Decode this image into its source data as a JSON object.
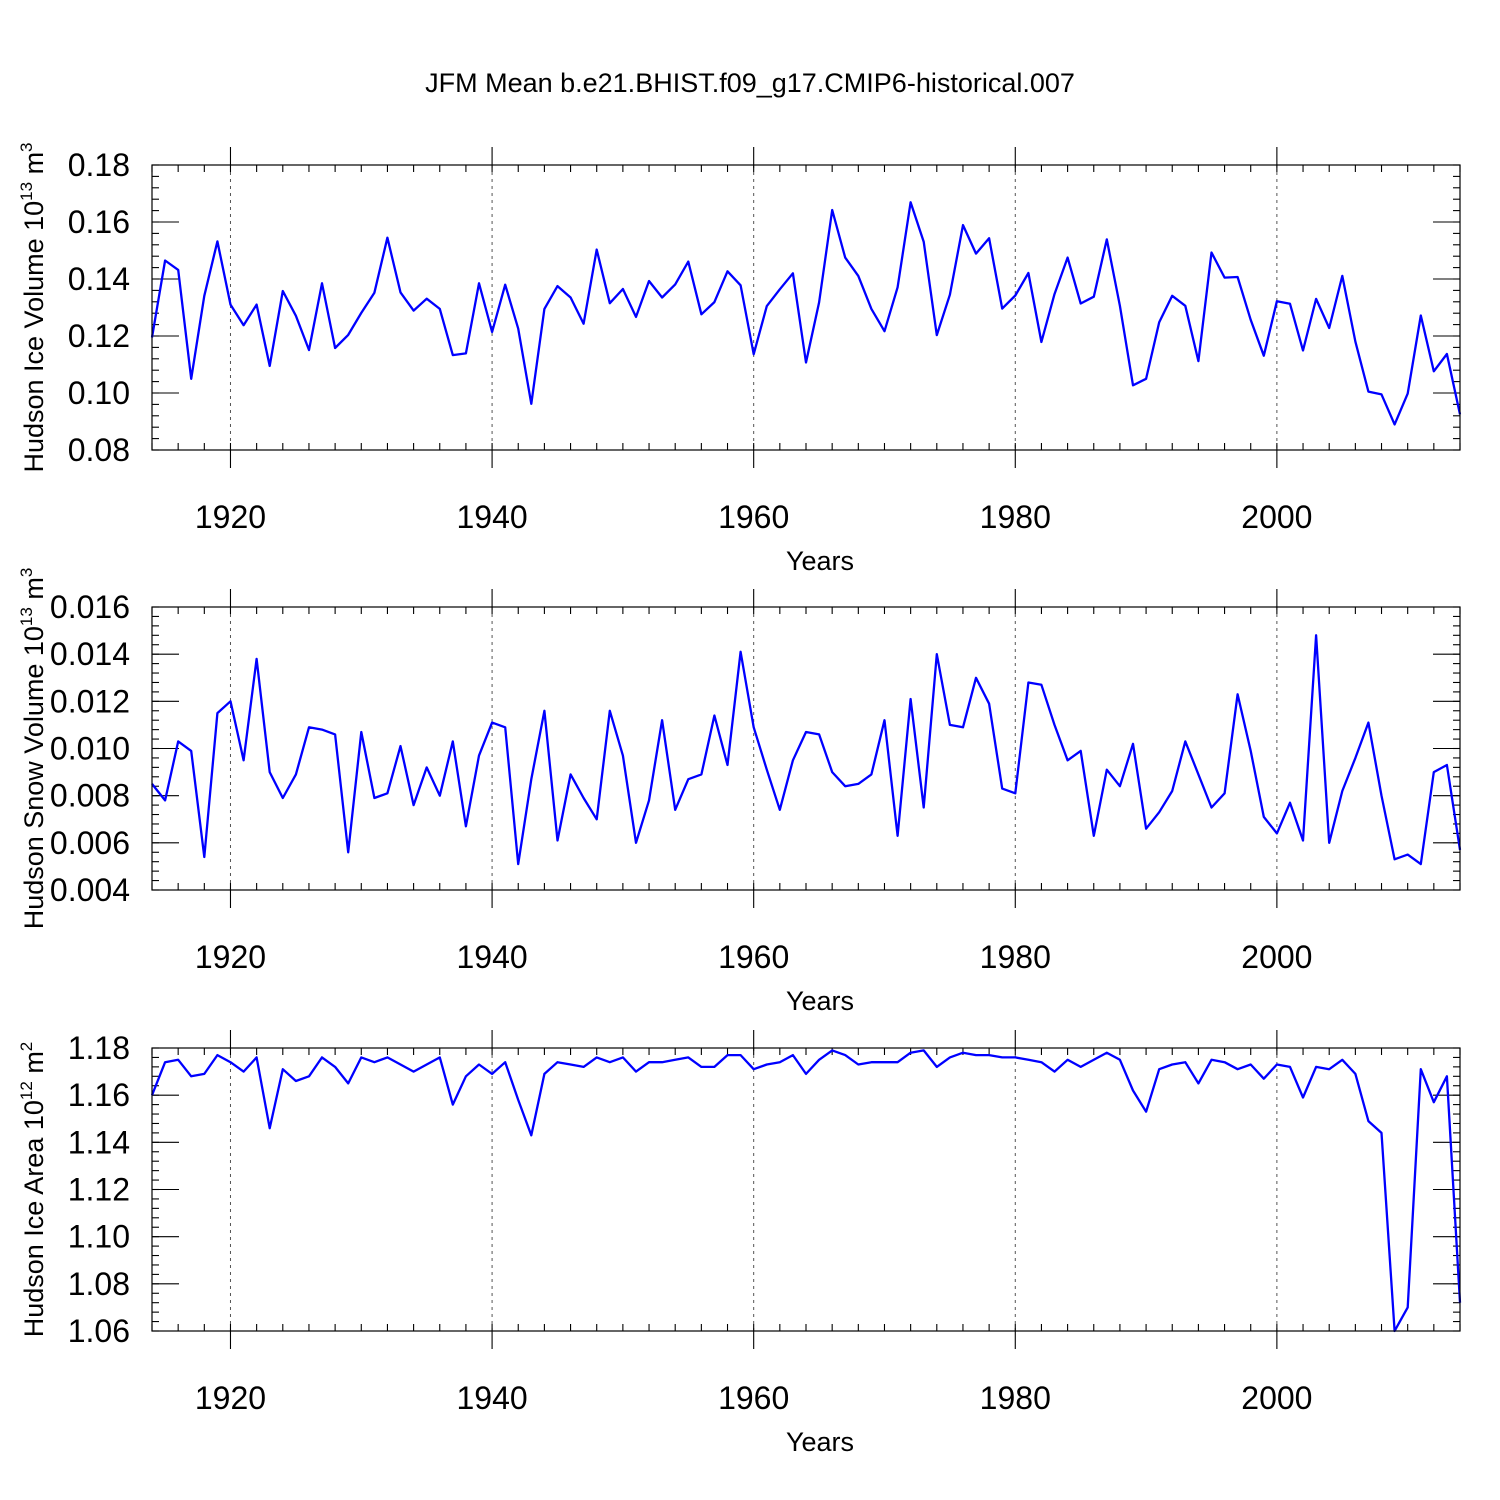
{
  "title": "JFM Mean b.e21.BHIST.f09_g17.CMIP6-historical.007",
  "colors": {
    "series": "#0000ff",
    "axis": "#000000",
    "grid": "#555555"
  },
  "chart_data": [
    {
      "type": "line",
      "ylabel": "Hudson Ice Volume",
      "yunit": {
        "base": "10",
        "exp": "13",
        "suffix": "m",
        "suffix_exp": "3"
      },
      "xlabel": "Years",
      "xlim": [
        1914,
        2014
      ],
      "ylim": [
        0.08,
        0.18
      ],
      "yticks": [
        0.08,
        0.1,
        0.12,
        0.14,
        0.16,
        0.18
      ],
      "ytick_labels": [
        "0.08",
        "0.10",
        "0.12",
        "0.14",
        "0.16",
        "0.18"
      ],
      "xticks": [
        1920,
        1940,
        1960,
        1980,
        2000
      ],
      "xtick_labels": [
        "1920",
        "1940",
        "1960",
        "1980",
        "2000"
      ],
      "grid": "dashed vertical at major x ticks",
      "x_start": 1914,
      "values": [
        0.1195,
        0.1465,
        0.1432,
        0.105,
        0.1341,
        0.1532,
        0.131,
        0.1238,
        0.131,
        0.1095,
        0.1358,
        0.1271,
        0.1151,
        0.1385,
        0.1158,
        0.1204,
        0.1281,
        0.1352,
        0.1545,
        0.1353,
        0.1289,
        0.1331,
        0.1295,
        0.1133,
        0.1139,
        0.1385,
        0.1214,
        0.138,
        0.1226,
        0.0962,
        0.1295,
        0.1375,
        0.1335,
        0.1243,
        0.1503,
        0.1315,
        0.1365,
        0.1267,
        0.1393,
        0.1335,
        0.1381,
        0.1461,
        0.1276,
        0.1319,
        0.1427,
        0.1378,
        0.1136,
        0.1305,
        0.1364,
        0.142,
        0.1107,
        0.1318,
        0.1642,
        0.1475,
        0.1411,
        0.1295,
        0.1217,
        0.1371,
        0.1669,
        0.1531,
        0.1203,
        0.1345,
        0.1589,
        0.1489,
        0.1543,
        0.1296,
        0.1342,
        0.1421,
        0.1179,
        0.1347,
        0.1475,
        0.1314,
        0.1338,
        0.1539,
        0.1306,
        0.1027,
        0.105,
        0.1248,
        0.1341,
        0.1306,
        0.1112,
        0.1493,
        0.1405,
        0.1407,
        0.1257,
        0.1131,
        0.1322,
        0.1313,
        0.1149,
        0.133,
        0.1228,
        0.1411,
        0.118,
        0.1005,
        0.0995,
        0.089,
        0.0998,
        0.1272,
        0.1076,
        0.1137,
        0.0925
      ]
    },
    {
      "type": "line",
      "ylabel": "Hudson Snow Volume",
      "yunit": {
        "base": "10",
        "exp": "13",
        "suffix": "m",
        "suffix_exp": "3"
      },
      "xlabel": "Years",
      "xlim": [
        1914,
        2014
      ],
      "ylim": [
        0.004,
        0.016
      ],
      "yticks": [
        0.004,
        0.006,
        0.008,
        0.01,
        0.012,
        0.014,
        0.016
      ],
      "ytick_labels": [
        "0.004",
        "0.006",
        "0.008",
        "0.010",
        "0.012",
        "0.014",
        "0.016"
      ],
      "xticks": [
        1920,
        1940,
        1960,
        1980,
        2000
      ],
      "xtick_labels": [
        "1920",
        "1940",
        "1960",
        "1980",
        "2000"
      ],
      "grid": "dashed vertical at major x ticks",
      "x_start": 1914,
      "values": [
        0.0085,
        0.0078,
        0.0103,
        0.0099,
        0.0054,
        0.0115,
        0.012,
        0.0095,
        0.0138,
        0.009,
        0.0079,
        0.0089,
        0.0109,
        0.0108,
        0.0106,
        0.0056,
        0.0107,
        0.0079,
        0.0081,
        0.0101,
        0.0076,
        0.0092,
        0.008,
        0.0103,
        0.0067,
        0.0097,
        0.0111,
        0.0109,
        0.0051,
        0.0087,
        0.0116,
        0.0061,
        0.0089,
        0.0079,
        0.007,
        0.0116,
        0.0097,
        0.006,
        0.0078,
        0.0112,
        0.0074,
        0.0087,
        0.0089,
        0.0114,
        0.0093,
        0.0141,
        0.0109,
        0.0091,
        0.0074,
        0.0095,
        0.0107,
        0.0106,
        0.009,
        0.0084,
        0.0085,
        0.0089,
        0.0112,
        0.0063,
        0.0121,
        0.0075,
        0.014,
        0.011,
        0.0109,
        0.013,
        0.0119,
        0.0083,
        0.0081,
        0.0128,
        0.0127,
        0.011,
        0.0095,
        0.0099,
        0.0063,
        0.0091,
        0.0084,
        0.0102,
        0.0066,
        0.0073,
        0.0082,
        0.0103,
        0.0089,
        0.0075,
        0.0081,
        0.0123,
        0.0099,
        0.0071,
        0.0064,
        0.0077,
        0.0061,
        0.0148,
        0.006,
        0.0082,
        0.0096,
        0.0111,
        0.008,
        0.0053,
        0.0055,
        0.0051,
        0.009,
        0.0093,
        0.0057
      ]
    },
    {
      "type": "line",
      "ylabel": "Hudson Ice Area",
      "yunit": {
        "base": "10",
        "exp": "12",
        "suffix": "m",
        "suffix_exp": "2"
      },
      "xlabel": "Years",
      "xlim": [
        1914,
        2014
      ],
      "ylim": [
        1.06,
        1.18
      ],
      "yticks": [
        1.06,
        1.08,
        1.1,
        1.12,
        1.14,
        1.16,
        1.18
      ],
      "ytick_labels": [
        "1.06",
        "1.08",
        "1.10",
        "1.12",
        "1.14",
        "1.16",
        "1.18"
      ],
      "xticks": [
        1920,
        1940,
        1960,
        1980,
        2000
      ],
      "xtick_labels": [
        "1920",
        "1940",
        "1960",
        "1980",
        "2000"
      ],
      "grid": "dashed vertical at major x ticks",
      "x_start": 1914,
      "values": [
        1.16,
        1.174,
        1.175,
        1.168,
        1.169,
        1.177,
        1.174,
        1.17,
        1.176,
        1.146,
        1.171,
        1.166,
        1.168,
        1.176,
        1.172,
        1.165,
        1.176,
        1.174,
        1.176,
        1.173,
        1.17,
        1.173,
        1.176,
        1.156,
        1.168,
        1.173,
        1.169,
        1.174,
        1.158,
        1.143,
        1.169,
        1.174,
        1.173,
        1.172,
        1.176,
        1.174,
        1.176,
        1.17,
        1.174,
        1.174,
        1.175,
        1.176,
        1.172,
        1.172,
        1.177,
        1.177,
        1.171,
        1.173,
        1.174,
        1.177,
        1.169,
        1.175,
        1.179,
        1.177,
        1.173,
        1.174,
        1.174,
        1.174,
        1.178,
        1.179,
        1.172,
        1.176,
        1.178,
        1.177,
        1.177,
        1.176,
        1.176,
        1.175,
        1.174,
        1.17,
        1.175,
        1.172,
        1.175,
        1.178,
        1.175,
        1.162,
        1.153,
        1.171,
        1.173,
        1.174,
        1.165,
        1.175,
        1.174,
        1.171,
        1.173,
        1.167,
        1.173,
        1.172,
        1.159,
        1.172,
        1.171,
        1.175,
        1.169,
        1.149,
        1.144,
        1.06,
        1.07,
        1.171,
        1.157,
        1.168,
        1.072
      ]
    }
  ]
}
